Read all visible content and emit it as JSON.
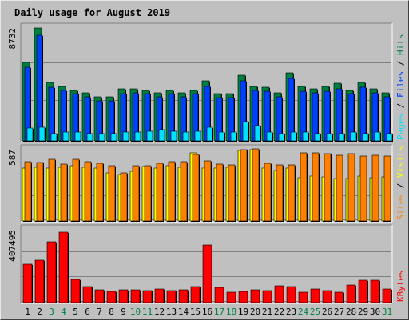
{
  "title": "Daily usage for August 2019",
  "colors": {
    "background": "#c0c0c0",
    "title": "#0000cc",
    "hits": "#008040",
    "files": "#0040ff",
    "pages": "#00e0ff",
    "visits": "#ffff00",
    "sites": "#ff8000",
    "kbytes": "#ff0000",
    "day_weekday": "#000000",
    "day_weekend": "#008040"
  },
  "chart_data": [
    {
      "type": "bar",
      "panel": "hits-files-pages",
      "max_label": "8732",
      "ylim": [
        0,
        8732
      ],
      "legend": [
        {
          "text": "Pages",
          "color": "#00e0ff"
        },
        {
          "text": " / ",
          "color": "#000000"
        },
        {
          "text": "Files",
          "color": "#0040ff"
        },
        {
          "text": " / ",
          "color": "#000000"
        },
        {
          "text": "Hits",
          "color": "#008040"
        }
      ],
      "categories": [
        "1",
        "2",
        "3",
        "4",
        "5",
        "6",
        "7",
        "8",
        "9",
        "10",
        "11",
        "12",
        "13",
        "14",
        "15",
        "16",
        "17",
        "18",
        "19",
        "20",
        "21",
        "22",
        "23",
        "24",
        "25",
        "26",
        "27",
        "28",
        "29",
        "30",
        "31"
      ],
      "series": [
        {
          "name": "Hits",
          "values": [
            5950,
            8532,
            4450,
            4150,
            3850,
            3650,
            3350,
            3350,
            3950,
            3950,
            3850,
            3650,
            3850,
            3650,
            3850,
            4550,
            3550,
            3550,
            4950,
            4150,
            4050,
            3650,
            5150,
            4150,
            3950,
            4150,
            4350,
            3850,
            4450,
            3950,
            3650
          ]
        },
        {
          "name": "Files",
          "values": [
            5550,
            8032,
            4050,
            3850,
            3550,
            3350,
            3050,
            3050,
            3550,
            3650,
            3550,
            3350,
            3550,
            3350,
            3550,
            4150,
            3250,
            3250,
            4550,
            3850,
            3750,
            3350,
            4750,
            3750,
            3650,
            3750,
            3950,
            3550,
            4050,
            3650,
            3350
          ]
        },
        {
          "name": "Pages",
          "values": [
            950,
            1050,
            550,
            650,
            650,
            550,
            550,
            550,
            650,
            650,
            750,
            850,
            750,
            650,
            750,
            1050,
            650,
            650,
            1450,
            1150,
            650,
            550,
            650,
            650,
            550,
            550,
            550,
            650,
            550,
            650,
            550
          ]
        }
      ]
    },
    {
      "type": "bar",
      "panel": "visits-sites",
      "max_label": "587",
      "ylim": [
        0,
        587
      ],
      "legend": [
        {
          "text": "Sites",
          "color": "#ff8000"
        },
        {
          "text": " / ",
          "color": "#000000"
        },
        {
          "text": "Visits",
          "color": "#ffff00"
        }
      ],
      "categories": [
        "1",
        "2",
        "3",
        "4",
        "5",
        "6",
        "7",
        "8",
        "9",
        "10",
        "11",
        "12",
        "13",
        "14",
        "15",
        "16",
        "17",
        "18",
        "19",
        "20",
        "21",
        "22",
        "23",
        "24",
        "25",
        "26",
        "27",
        "28",
        "29",
        "30",
        "31"
      ],
      "series": [
        {
          "name": "Visits",
          "values": [
            420,
            425,
            422,
            430,
            440,
            425,
            420,
            380,
            370,
            395,
            435,
            420,
            440,
            425,
            545,
            420,
            420,
            425,
            560,
            565,
            420,
            405,
            420,
            345,
            355,
            350,
            335,
            340,
            355,
            345,
            350
          ]
        },
        {
          "name": "Sites",
          "values": [
            470,
            465,
            490,
            455,
            490,
            470,
            460,
            440,
            380,
            440,
            440,
            460,
            470,
            470,
            530,
            480,
            455,
            445,
            570,
            575,
            460,
            445,
            445,
            540,
            540,
            535,
            525,
            535,
            520,
            525,
            520
          ]
        }
      ]
    },
    {
      "type": "bar",
      "panel": "kbytes",
      "max_label": "407495",
      "ylim": [
        0,
        407495
      ],
      "legend": [
        {
          "text": "KBytes",
          "color": "#ff0000"
        }
      ],
      "categories": [
        "1",
        "2",
        "3",
        "4",
        "5",
        "6",
        "7",
        "8",
        "9",
        "10",
        "11",
        "12",
        "13",
        "14",
        "15",
        "16",
        "17",
        "18",
        "19",
        "20",
        "21",
        "22",
        "23",
        "24",
        "25",
        "26",
        "27",
        "28",
        "29",
        "30",
        "31"
      ],
      "series": [
        {
          "name": "KBytes",
          "values": [
            206000,
            229000,
            331000,
            383000,
            127000,
            87000,
            69000,
            59000,
            70000,
            70000,
            67000,
            73000,
            66000,
            70000,
            87000,
            310000,
            83000,
            56000,
            61000,
            69000,
            67000,
            93000,
            85000,
            55000,
            72000,
            67000,
            56000,
            96000,
            122000,
            122000,
            72000
          ]
        }
      ]
    }
  ],
  "day_labels": [
    {
      "text": "1",
      "weekend": false
    },
    {
      "text": "2",
      "weekend": false
    },
    {
      "text": "3",
      "weekend": true
    },
    {
      "text": "4",
      "weekend": true
    },
    {
      "text": "5",
      "weekend": false
    },
    {
      "text": "6",
      "weekend": false
    },
    {
      "text": "7",
      "weekend": false
    },
    {
      "text": "8",
      "weekend": false
    },
    {
      "text": "9",
      "weekend": false
    },
    {
      "text": "10",
      "weekend": true
    },
    {
      "text": "11",
      "weekend": true
    },
    {
      "text": "12",
      "weekend": false
    },
    {
      "text": "13",
      "weekend": false
    },
    {
      "text": "14",
      "weekend": false
    },
    {
      "text": "15",
      "weekend": false
    },
    {
      "text": "16",
      "weekend": false
    },
    {
      "text": "17",
      "weekend": true
    },
    {
      "text": "18",
      "weekend": true
    },
    {
      "text": "19",
      "weekend": false
    },
    {
      "text": "20",
      "weekend": false
    },
    {
      "text": "21",
      "weekend": false
    },
    {
      "text": "22",
      "weekend": false
    },
    {
      "text": "23",
      "weekend": false
    },
    {
      "text": "24",
      "weekend": true
    },
    {
      "text": "25",
      "weekend": true
    },
    {
      "text": "26",
      "weekend": false
    },
    {
      "text": "27",
      "weekend": false
    },
    {
      "text": "28",
      "weekend": false
    },
    {
      "text": "29",
      "weekend": false
    },
    {
      "text": "30",
      "weekend": false
    },
    {
      "text": "31",
      "weekend": true
    }
  ]
}
